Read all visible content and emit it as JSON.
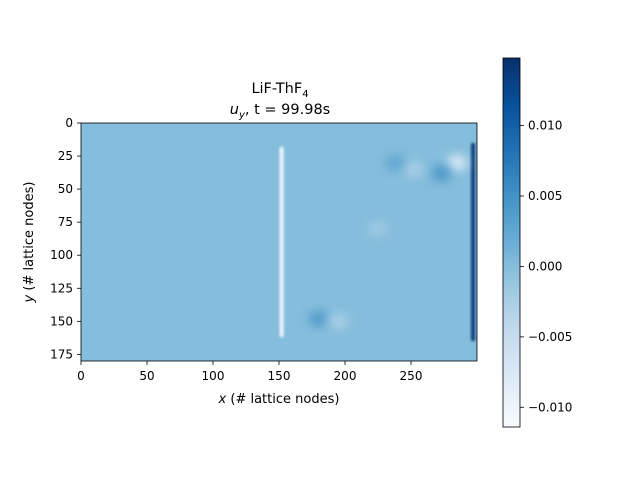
{
  "chart_data": {
    "type": "heatmap",
    "title_line1": "LiF-ThF",
    "title_line1_subscript": "4",
    "title_line2_var": "u",
    "title_line2_var_subscript": "y",
    "title_line2_rest": ", t = 99.98s",
    "xlabel_var": "x",
    "xlabel_rest": " (# lattice nodes)",
    "ylabel_var": "y",
    "ylabel_rest": " (# lattice nodes)",
    "xlim": [
      0,
      300
    ],
    "ylim": [
      180,
      0
    ],
    "x_ticks": [
      0,
      50,
      100,
      150,
      200,
      250
    ],
    "x_tick_labels": [
      "0",
      "50",
      "100",
      "150",
      "200",
      "250"
    ],
    "y_ticks": [
      0,
      25,
      50,
      75,
      100,
      125,
      150,
      175
    ],
    "y_tick_labels": [
      "0",
      "25",
      "50",
      "75",
      "100",
      "125",
      "150",
      "175"
    ],
    "colormap": "Blues",
    "colorbar": {
      "vmin": -0.0114,
      "vmax": 0.0148,
      "ticks": [
        -0.01,
        -0.005,
        0.0,
        0.005,
        0.01
      ],
      "tick_labels": [
        "−0.010",
        "−0.005",
        "0.000",
        "0.005",
        "0.010"
      ]
    },
    "background_value": 0.0,
    "field_features": [
      {
        "kind": "vertical_band",
        "x": 152,
        "y_range": [
          18,
          162
        ],
        "value": -0.0105
      },
      {
        "kind": "vertical_band",
        "x": 297,
        "y_range": [
          15,
          165
        ],
        "value": 0.014
      },
      {
        "kind": "blob",
        "x": 285,
        "y": 30,
        "value": -0.0095
      },
      {
        "kind": "blob",
        "x": 273,
        "y": 38,
        "value": 0.005
      },
      {
        "kind": "blob",
        "x": 252,
        "y": 35,
        "value": -0.003
      },
      {
        "kind": "blob",
        "x": 238,
        "y": 30,
        "value": 0.003
      },
      {
        "kind": "blob",
        "x": 180,
        "y": 148,
        "value": 0.0045
      },
      {
        "kind": "blob",
        "x": 195,
        "y": 150,
        "value": -0.003
      },
      {
        "kind": "blob",
        "x": 225,
        "y": 80,
        "value": -0.002
      }
    ]
  }
}
